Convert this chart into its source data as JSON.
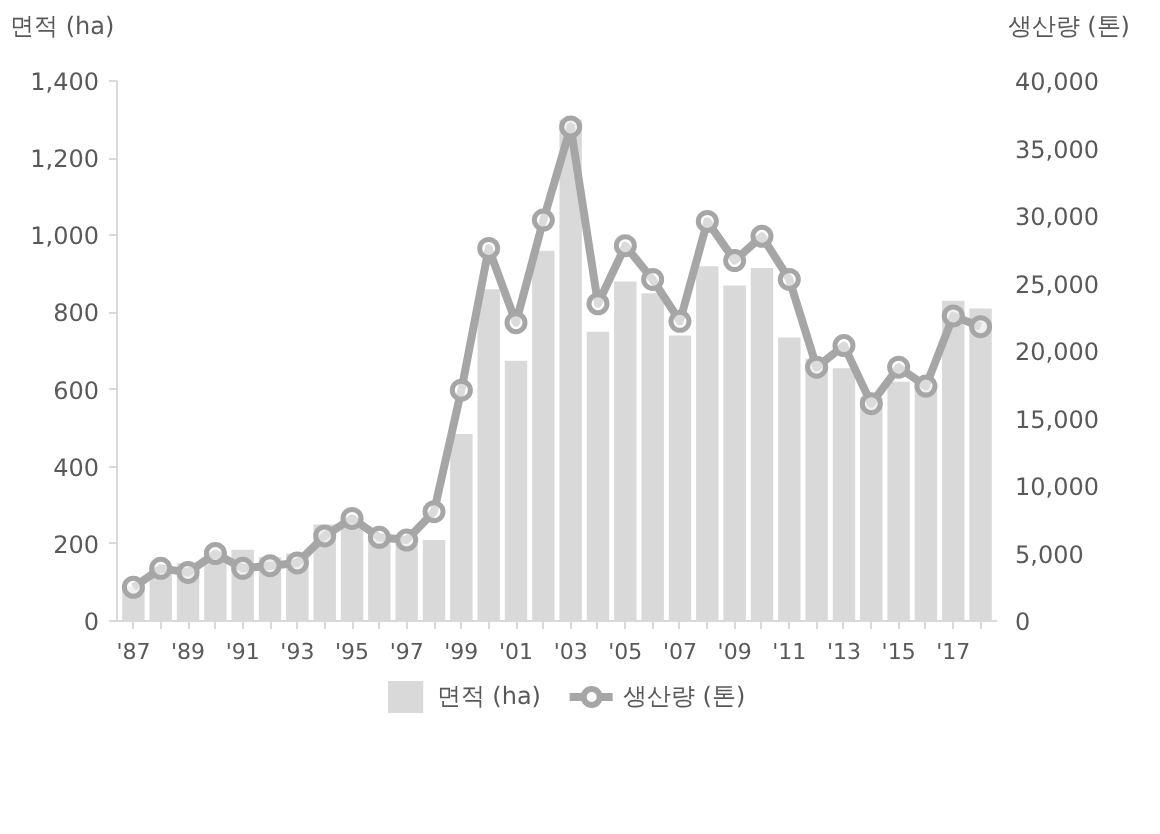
{
  "chart_data": {
    "type": "bar",
    "ylabel": "면적 (ha)",
    "y2label": "생산량 (톤)",
    "categories": [
      "'87",
      null,
      "'89",
      null,
      "'91",
      null,
      "'93",
      null,
      "'95",
      null,
      "'97",
      null,
      "'99",
      null,
      "'01",
      null,
      "'03",
      null,
      "'05",
      null,
      "'07",
      null,
      "'09",
      null,
      "'11",
      null,
      "'13",
      null,
      "'15",
      null,
      "'17",
      null
    ],
    "series": [
      {
        "name": "면적 (ha)",
        "color": "#d9d9d9",
        "values": [
          90,
          140,
          150,
          170,
          185,
          165,
          175,
          250,
          265,
          210,
          200,
          210,
          485,
          860,
          675,
          960,
          1300,
          750,
          880,
          850,
          740,
          920,
          870,
          915,
          735,
          680,
          655,
          580,
          620,
          610,
          830,
          810
        ]
      },
      {
        "name": "생산량 (톤)",
        "type": "line",
        "axis": "y2",
        "color": "#a6a6a6",
        "marker": "circle",
        "values": [
          2500,
          3900,
          3600,
          5000,
          3900,
          4100,
          4300,
          6300,
          7600,
          6200,
          6000,
          8100,
          17100,
          27600,
          22100,
          29700,
          36600,
          23500,
          27800,
          25300,
          22200,
          29600,
          26700,
          28500,
          25300,
          18800,
          20400,
          16100,
          18800,
          17400,
          22600,
          21800
        ]
      }
    ],
    "ylim": [
      0,
      1400
    ],
    "yticks": [
      0,
      200,
      400,
      600,
      800,
      {
        "value": 1000,
        "label": "1,000"
      },
      {
        "value": 1200,
        "label": "1,200"
      },
      {
        "value": 1400,
        "label": "1,400"
      }
    ],
    "y2lim": [
      0,
      40000
    ],
    "y2ticks": [
      0,
      {
        "value": 5000,
        "label": "5,000"
      },
      {
        "value": 10000,
        "label": "10,000"
      },
      {
        "value": 15000,
        "label": "15,000"
      },
      {
        "value": 20000,
        "label": "20,000"
      },
      {
        "value": 25000,
        "label": "25,000"
      },
      {
        "value": 30000,
        "label": "30,000"
      },
      {
        "value": 35000,
        "label": "35,000"
      },
      {
        "value": 40000,
        "label": "40,000"
      }
    ],
    "grid": false,
    "legend": "bottom"
  }
}
